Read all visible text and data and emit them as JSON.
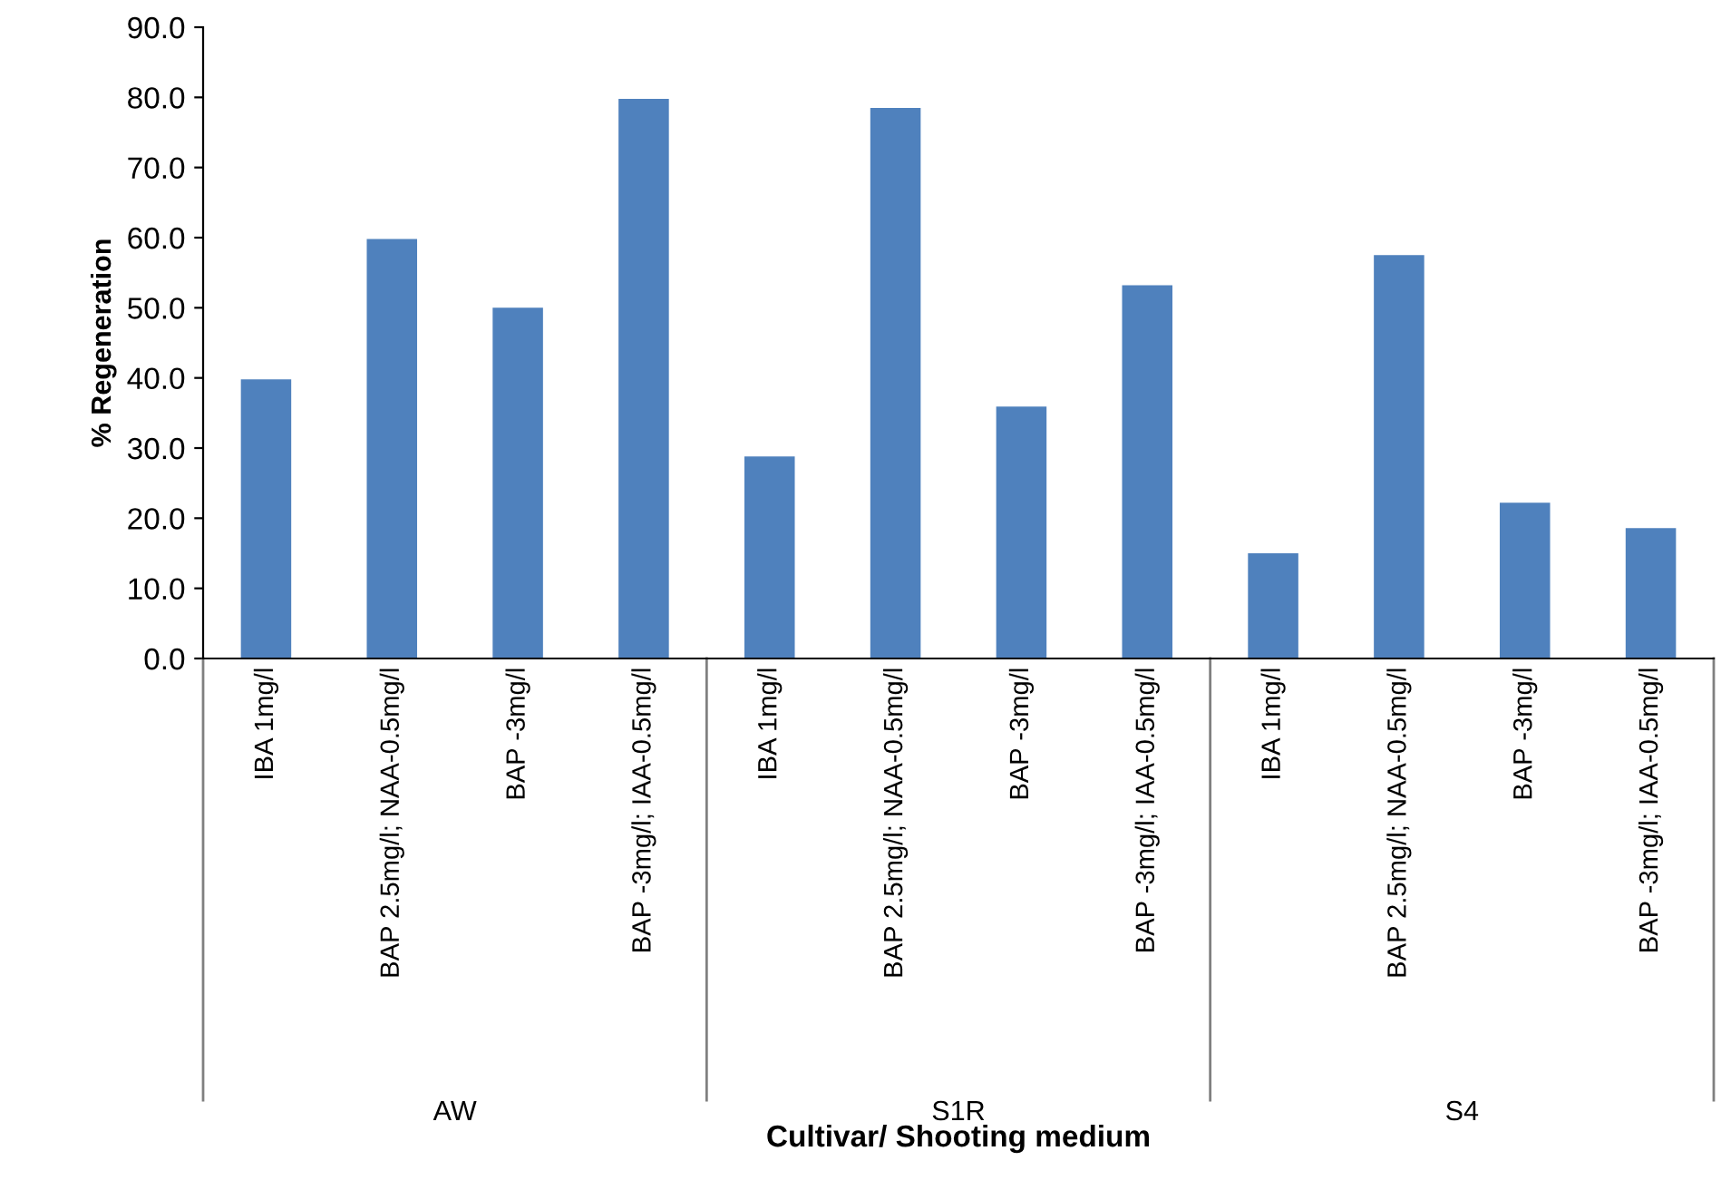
{
  "chart_data": {
    "type": "bar",
    "xlabel": "Cultivar/ Shooting medium",
    "ylabel": "% Regeneration",
    "categories": [
      "IBA 1mg/l",
      "BAP 2.5mg/l; NAA-0.5mg/l",
      "BAP -3mg/l",
      "BAP -3mg/l; IAA-0.5mg/l",
      "IBA 1mg/l",
      "BAP 2.5mg/l; NAA-0.5mg/l",
      "BAP -3mg/l",
      "BAP -3mg/l; IAA-0.5mg/l",
      "IBA 1mg/l",
      "BAP 2.5mg/l; NAA-0.5mg/l",
      "BAP -3mg/l",
      "BAP -3mg/l; IAA-0.5mg/l"
    ],
    "values": [
      39.8,
      59.8,
      50.0,
      79.8,
      28.8,
      78.5,
      35.9,
      53.2,
      15.0,
      57.5,
      22.2,
      18.6
    ],
    "color": "#4f81bd",
    "annotations": [
      "AW",
      "S1R",
      "S4"
    ],
    "ylim": [
      0,
      90
    ],
    "yticks": [
      {
        "value": 0,
        "label": "0.0"
      },
      {
        "value": 10,
        "label": "10.0"
      },
      {
        "value": 20,
        "label": "20.0"
      },
      {
        "value": 30,
        "label": "30.0"
      },
      {
        "value": 40,
        "label": "40.0"
      },
      {
        "value": 50,
        "label": "50.0"
      },
      {
        "value": 60,
        "label": "60.0"
      },
      {
        "value": 70,
        "label": "70.0"
      },
      {
        "value": 80,
        "label": "80.0"
      },
      {
        "value": 90,
        "label": "90.0"
      }
    ],
    "grid": false,
    "legend": false
  }
}
